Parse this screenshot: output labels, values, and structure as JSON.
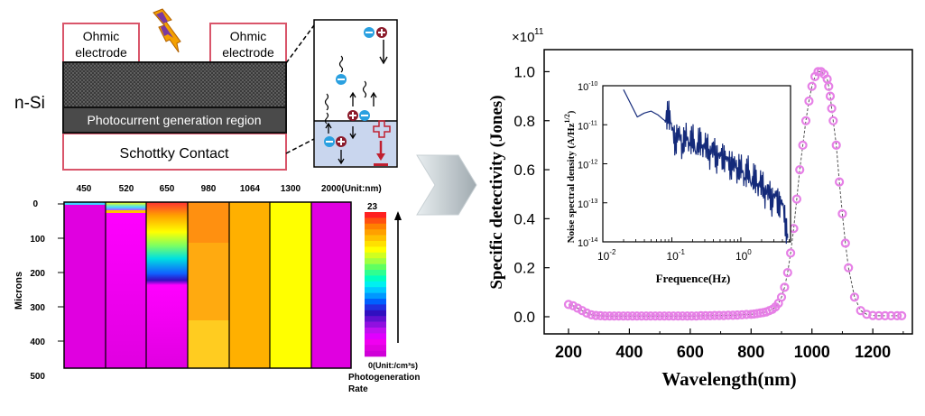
{
  "device": {
    "ohmic_left": [
      "Ohmic",
      "electrode"
    ],
    "ohmic_right": [
      "Ohmic",
      "electrode"
    ],
    "layer_label": "n-Si",
    "photocurrent_region": "Photocurrent generation region",
    "schottky": "Schottky Contact",
    "colors": {
      "border": "#d9556a",
      "layer": "#3a3a3a",
      "inset_bg": "#c9d6ee",
      "electron": "#2aa0e0",
      "hole": "#8b1a2a"
    }
  },
  "simulation": {
    "wavelength_labels": [
      "450",
      "520",
      "650",
      "980",
      "1064",
      "1300",
      "2000(Unit:nm)"
    ],
    "y_axis_label": "Microns",
    "y_ticks": [
      "0",
      "100",
      "200",
      "300",
      "400",
      "500"
    ],
    "colorbar_max": "23",
    "colorbar_min": "0(Unit:/cm³s)",
    "colorbar_title": [
      "Photogeneration",
      "Rate"
    ]
  },
  "chart_data": [
    {
      "type": "scatter",
      "title": "",
      "multiplier": "×10",
      "multiplier_exp": "11",
      "xlabel": "Wavelength(nm)",
      "ylabel": "Specific detectivity (Jones)",
      "xlim": [
        120,
        1330
      ],
      "ylim": [
        -0.07,
        1.09
      ],
      "xticks": [
        "200",
        "400",
        "600",
        "800",
        "1000",
        "1200"
      ],
      "yticks": [
        "0.0",
        "0.2",
        "0.4",
        "0.6",
        "0.8",
        "1.0"
      ],
      "marker_color": "#e680e6",
      "x": [
        200,
        215,
        230,
        245,
        260,
        275,
        290,
        305,
        320,
        335,
        350,
        365,
        380,
        395,
        410,
        425,
        440,
        455,
        470,
        485,
        500,
        515,
        530,
        545,
        560,
        575,
        590,
        605,
        620,
        635,
        650,
        665,
        680,
        695,
        710,
        725,
        740,
        755,
        770,
        785,
        800,
        810,
        820,
        830,
        840,
        850,
        860,
        870,
        880,
        890,
        900,
        910,
        920,
        930,
        940,
        950,
        960,
        970,
        980,
        990,
        1000,
        1010,
        1020,
        1030,
        1040,
        1050,
        1055,
        1060,
        1065,
        1070,
        1080,
        1090,
        1100,
        1110,
        1120,
        1140,
        1160,
        1180,
        1200,
        1220,
        1240,
        1260,
        1280,
        1295
      ],
      "y": [
        0.05,
        0.045,
        0.035,
        0.025,
        0.015,
        0.008,
        0.005,
        0.004,
        0.003,
        0.003,
        0.003,
        0.003,
        0.003,
        0.003,
        0.003,
        0.003,
        0.003,
        0.003,
        0.003,
        0.003,
        0.003,
        0.003,
        0.003,
        0.003,
        0.003,
        0.003,
        0.003,
        0.003,
        0.003,
        0.004,
        0.004,
        0.004,
        0.005,
        0.005,
        0.005,
        0.006,
        0.006,
        0.007,
        0.008,
        0.009,
        0.01,
        0.011,
        0.013,
        0.015,
        0.017,
        0.02,
        0.025,
        0.03,
        0.04,
        0.055,
        0.08,
        0.12,
        0.18,
        0.26,
        0.36,
        0.48,
        0.6,
        0.7,
        0.8,
        0.88,
        0.94,
        0.98,
        1.0,
        1.0,
        0.99,
        0.97,
        0.94,
        0.9,
        0.85,
        0.8,
        0.7,
        0.55,
        0.42,
        0.3,
        0.2,
        0.08,
        0.025,
        0.01,
        0.005,
        0.004,
        0.004,
        0.004,
        0.004,
        0.004
      ]
    },
    {
      "type": "line",
      "title": "",
      "xlabel": "Frequence(Hz)",
      "ylabel": "Noise spectral density (A/Hz",
      "ylabel_exp": "1/2",
      "xscale": "log",
      "yscale": "log",
      "xlim_log10": [
        -2,
        0.72
      ],
      "ylim_log10": [
        -14,
        -10
      ],
      "xticks": [
        "10",
        "10",
        "10"
      ],
      "xtick_exps": [
        "-2",
        "-1",
        "0"
      ],
      "yticks": [
        "10",
        "10",
        "10",
        "10",
        "10"
      ],
      "ytick_exps": [
        "-14",
        "-13",
        "-12",
        "-11",
        "-10"
      ],
      "line_color": "#142a7a",
      "x_log10": [
        -1.7,
        -1.6,
        -1.5,
        -1.4,
        -1.3,
        -1.2,
        -1.1,
        -1.05,
        -1.0,
        -0.95,
        -0.9,
        -0.85,
        -0.8,
        -0.75,
        -0.7,
        -0.65,
        -0.6,
        -0.55,
        -0.5,
        -0.45,
        -0.4,
        -0.35,
        -0.3,
        -0.25,
        -0.2,
        -0.15,
        -0.1,
        -0.05,
        0.0,
        0.05,
        0.1,
        0.15,
        0.2,
        0.25,
        0.3,
        0.35,
        0.4,
        0.45,
        0.5,
        0.55,
        0.6,
        0.65,
        0.68
      ],
      "y_log10": [
        -10.1,
        -10.45,
        -10.8,
        -10.7,
        -10.65,
        -10.75,
        -10.9,
        -10.7,
        -11.0,
        -11.5,
        -11.1,
        -11.6,
        -11.2,
        -11.5,
        -11.3,
        -11.7,
        -11.35,
        -11.6,
        -11.45,
        -11.8,
        -11.5,
        -11.9,
        -11.7,
        -11.9,
        -11.8,
        -12.1,
        -11.9,
        -12.2,
        -12.0,
        -12.4,
        -12.1,
        -12.5,
        -12.3,
        -12.6,
        -12.4,
        -12.8,
        -12.6,
        -13.0,
        -12.7,
        -13.1,
        -12.9,
        -13.6,
        -13.9
      ]
    }
  ]
}
